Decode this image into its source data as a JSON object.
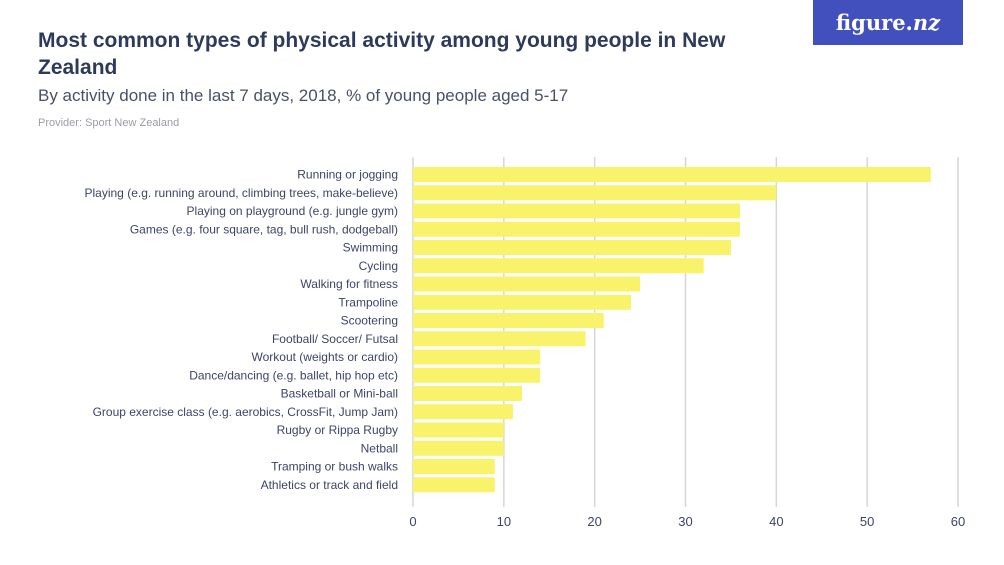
{
  "title": "Most common types of physical activity among young people in New Zealand",
  "subtitle": "By activity done in the last 7 days, 2018, % of young people aged 5-17",
  "provider": "Provider: Sport New Zealand",
  "logo": {
    "main": "figure.",
    "accent": "nz"
  },
  "colors": {
    "bar": "#f8f36a",
    "grid": "#d6d6d6",
    "text": "#3d4466",
    "logo_bg": "#4150bd"
  },
  "chart_data": {
    "type": "bar",
    "orientation": "horizontal",
    "title": "Most common types of physical activity among young people in New Zealand",
    "xlabel": "",
    "ylabel": "",
    "xlim": [
      0,
      60
    ],
    "ticks": [
      0,
      10,
      20,
      30,
      40,
      50,
      60
    ],
    "grid": true,
    "categories": [
      "Running or jogging",
      "Playing (e.g. running around, climbing trees, make-believe)",
      "Playing on playground (e.g. jungle gym)",
      "Games (e.g. four square, tag, bull rush, dodgeball)",
      "Swimming",
      "Cycling",
      "Walking for fitness",
      "Trampoline",
      "Scootering",
      "Football/ Soccer/ Futsal",
      "Workout (weights or cardio)",
      "Dance/dancing (e.g. ballet, hip hop etc)",
      "Basketball or Mini-ball",
      "Group exercise class (e.g. aerobics, CrossFit, Jump Jam)",
      "Rugby or Rippa Rugby",
      "Netball",
      "Tramping or bush walks",
      "Athletics or track and field"
    ],
    "values": [
      57,
      40,
      36,
      36,
      35,
      32,
      25,
      24,
      21,
      19,
      14,
      14,
      12,
      11,
      10,
      10,
      9,
      9
    ]
  }
}
